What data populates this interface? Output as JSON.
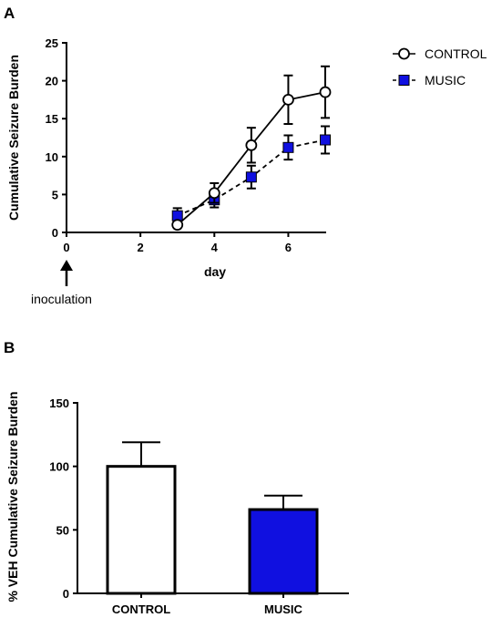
{
  "chart_data": [
    {
      "panel": "A",
      "type": "line",
      "xlabel": "day",
      "ylabel": "Cumulative Seizure Burden",
      "xlim": [
        0,
        7
      ],
      "ylim": [
        0,
        25
      ],
      "xticks": [
        0,
        2,
        4,
        6
      ],
      "yticks": [
        0,
        5,
        10,
        15,
        20,
        25
      ],
      "legend_position": "top-right",
      "annotation": "inoculation",
      "series": [
        {
          "name": "CONTROL",
          "marker": "open-circle",
          "line": "solid",
          "color": "#ffffff",
          "x": [
            3,
            4,
            5,
            6,
            7
          ],
          "values": [
            1.0,
            5.2,
            11.5,
            17.5,
            18.5
          ],
          "errors": [
            0.2,
            1.3,
            2.3,
            3.2,
            3.4
          ]
        },
        {
          "name": "MUSIC",
          "marker": "filled-square",
          "line": "dashed",
          "color": "#1010e0",
          "x": [
            3,
            4,
            5,
            6,
            7
          ],
          "values": [
            2.2,
            4.3,
            7.3,
            11.2,
            12.2
          ],
          "errors": [
            1.0,
            1.0,
            1.5,
            1.6,
            1.8
          ]
        }
      ]
    },
    {
      "panel": "B",
      "type": "bar",
      "ylabel": "% VEH Cumulative Seizure Burden",
      "ylim": [
        0,
        150
      ],
      "yticks": [
        0,
        50,
        100,
        150
      ],
      "categories": [
        "CONTROL",
        "MUSIC"
      ],
      "values": [
        100,
        66
      ],
      "errors": [
        19,
        11
      ],
      "colors": [
        "#ffffff",
        "#1010e0"
      ]
    }
  ]
}
